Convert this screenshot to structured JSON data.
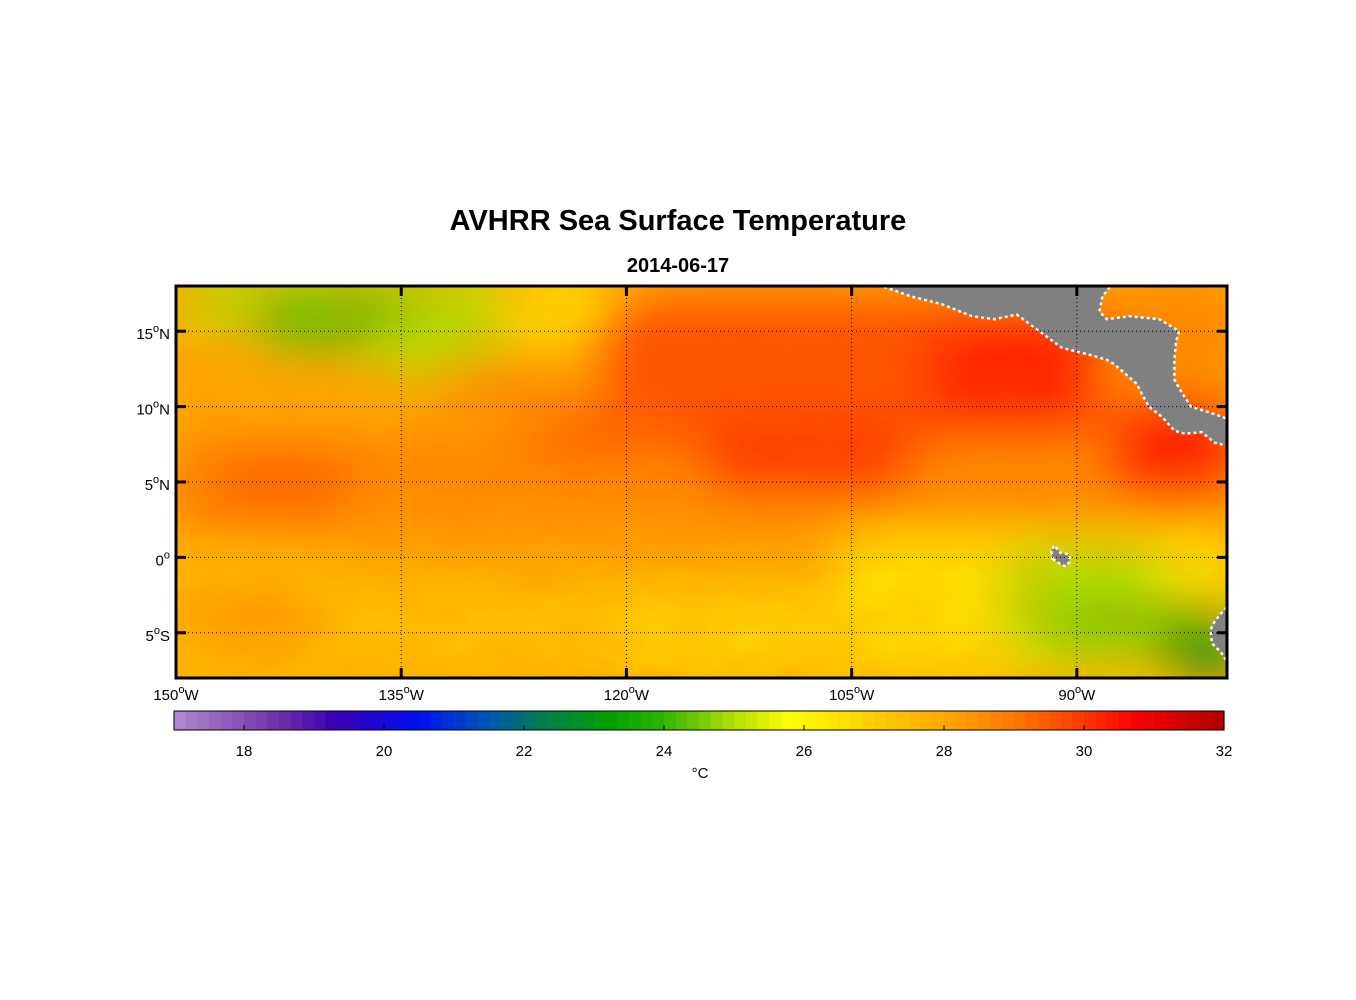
{
  "title": "AVHRR Sea Surface Temperature",
  "date": "2014-06-17",
  "map": {
    "lon_range": [
      -150,
      -80
    ],
    "lat_range": [
      -8,
      18
    ],
    "lat_ticks": [
      {
        "value": 15,
        "num": "15",
        "sup": "o",
        "hemi": "N"
      },
      {
        "value": 10,
        "num": "10",
        "sup": "o",
        "hemi": "N"
      },
      {
        "value": 5,
        "num": "5",
        "sup": "o",
        "hemi": "N"
      },
      {
        "value": 0,
        "num": "0",
        "sup": "o",
        "hemi": ""
      },
      {
        "value": -5,
        "num": "5",
        "sup": "o",
        "hemi": "S"
      }
    ],
    "lon_ticks": [
      {
        "value": -150,
        "num": "150",
        "sup": "o",
        "hemi": "W"
      },
      {
        "value": -135,
        "num": "135",
        "sup": "o",
        "hemi": "W"
      },
      {
        "value": -120,
        "num": "120",
        "sup": "o",
        "hemi": "W"
      },
      {
        "value": -105,
        "num": "105",
        "sup": "o",
        "hemi": "W"
      },
      {
        "value": -90,
        "num": "90",
        "sup": "o",
        "hemi": "W"
      }
    ],
    "grid": "dotted",
    "colors": {
      "land": "#808080",
      "coast": "#ffffff",
      "frame": "#000000"
    }
  },
  "colorbar": {
    "range": [
      17,
      32
    ],
    "ticks": [
      "18",
      "20",
      "22",
      "24",
      "26",
      "28",
      "30",
      "32"
    ],
    "unit": "°C",
    "stops": [
      {
        "v": 17,
        "c": "#b08ad0"
      },
      {
        "v": 18.5,
        "c": "#7030a8"
      },
      {
        "v": 19.3,
        "c": "#3a00b4"
      },
      {
        "v": 20.5,
        "c": "#0010f0"
      },
      {
        "v": 21.5,
        "c": "#0058b4"
      },
      {
        "v": 22.2,
        "c": "#007a55"
      },
      {
        "v": 23.2,
        "c": "#00a000"
      },
      {
        "v": 24,
        "c": "#30b400"
      },
      {
        "v": 25,
        "c": "#b4e000"
      },
      {
        "v": 25.8,
        "c": "#fffe00"
      },
      {
        "v": 27,
        "c": "#ffcd00"
      },
      {
        "v": 28,
        "c": "#ffa800"
      },
      {
        "v": 29,
        "c": "#ff7800"
      },
      {
        "v": 30,
        "c": "#ff3800"
      },
      {
        "v": 30.7,
        "c": "#ff0000"
      },
      {
        "v": 32,
        "c": "#b00000"
      }
    ]
  }
}
